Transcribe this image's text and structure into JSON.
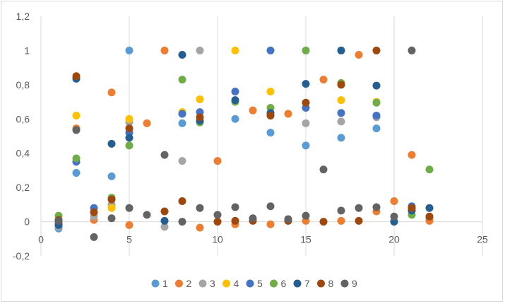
{
  "chart_data": {
    "type": "scatter",
    "title": "",
    "xlabel": "",
    "ylabel": "",
    "xlim": [
      0,
      25
    ],
    "ylim": [
      -0.2,
      1.2
    ],
    "x_ticks": [
      0,
      5,
      10,
      15,
      20,
      25
    ],
    "x_tick_labels": [
      "0",
      "5",
      "10",
      "15",
      "20",
      "25"
    ],
    "y_ticks": [
      -0.2,
      0,
      0.2,
      0.4,
      0.6,
      0.8,
      1,
      1.2
    ],
    "y_tick_labels": [
      "-0,2",
      "0",
      "0,2",
      "0,4",
      "0,6",
      "0,8",
      "1",
      "1,2"
    ],
    "grid": "vertical",
    "legend": "bottom",
    "series": [
      {
        "name": "1",
        "color": "#5b9bd5",
        "points": [
          [
            1,
            -0.04
          ],
          [
            2,
            0.285
          ],
          [
            4,
            0.265
          ],
          [
            5,
            1.0
          ],
          [
            8,
            0.575
          ],
          [
            11,
            0.6
          ],
          [
            13,
            0.52
          ],
          [
            15,
            0.445
          ],
          [
            17,
            0.49
          ],
          [
            19,
            0.545
          ],
          [
            21,
            0.065
          ],
          [
            22,
            0.02
          ]
        ]
      },
      {
        "name": "2",
        "color": "#ed7d31",
        "points": [
          [
            1,
            0.0
          ],
          [
            2,
            0.545
          ],
          [
            3,
            0.01
          ],
          [
            4,
            0.755
          ],
          [
            5,
            -0.02
          ],
          [
            6,
            0.575
          ],
          [
            7,
            1.0
          ],
          [
            9,
            -0.035
          ],
          [
            10,
            0.355
          ],
          [
            11,
            -0.015
          ],
          [
            12,
            0.65
          ],
          [
            13,
            -0.015
          ],
          [
            14,
            0.63
          ],
          [
            15,
            0.005
          ],
          [
            16,
            0.83
          ],
          [
            17,
            0.005
          ],
          [
            18,
            0.975
          ],
          [
            19,
            0.06
          ],
          [
            20,
            0.12
          ],
          [
            21,
            0.39
          ],
          [
            22,
            0.005
          ]
        ]
      },
      {
        "name": "3",
        "color": "#a5a5a5",
        "points": [
          [
            1,
            -0.03
          ],
          [
            3,
            0.03
          ],
          [
            4,
            0.1
          ],
          [
            5,
            0.58
          ],
          [
            7,
            -0.03
          ],
          [
            8,
            0.355
          ],
          [
            9,
            1.0
          ],
          [
            13,
            0.62
          ],
          [
            15,
            0.575
          ],
          [
            17,
            0.585
          ],
          [
            19,
            0.61
          ]
        ]
      },
      {
        "name": "4",
        "color": "#ffc000",
        "points": [
          [
            1,
            0.01
          ],
          [
            2,
            0.62
          ],
          [
            4,
            0.08
          ],
          [
            5,
            0.6
          ],
          [
            8,
            0.64
          ],
          [
            9,
            0.715
          ],
          [
            11,
            1.0
          ],
          [
            13,
            0.76
          ],
          [
            17,
            0.71
          ],
          [
            19,
            0.7
          ],
          [
            21,
            0.08
          ]
        ]
      },
      {
        "name": "5",
        "color": "#4472c4",
        "points": [
          [
            1,
            -0.01
          ],
          [
            2,
            0.35
          ],
          [
            3,
            0.08
          ],
          [
            5,
            0.52
          ],
          [
            8,
            0.63
          ],
          [
            9,
            0.64
          ],
          [
            11,
            0.76
          ],
          [
            13,
            1.0
          ],
          [
            15,
            0.665
          ],
          [
            17,
            0.635
          ],
          [
            19,
            0.62
          ],
          [
            21,
            0.09
          ]
        ]
      },
      {
        "name": "6",
        "color": "#70ad47",
        "points": [
          [
            1,
            0.035
          ],
          [
            2,
            0.37
          ],
          [
            4,
            0.14
          ],
          [
            5,
            0.445
          ],
          [
            8,
            0.83
          ],
          [
            9,
            0.58
          ],
          [
            11,
            0.7
          ],
          [
            13,
            0.665
          ],
          [
            15,
            1.0
          ],
          [
            17,
            0.81
          ],
          [
            19,
            0.695
          ],
          [
            21,
            0.04
          ],
          [
            22,
            0.305
          ]
        ]
      },
      {
        "name": "7",
        "color": "#255e91",
        "points": [
          [
            1,
            -0.02
          ],
          [
            2,
            0.835
          ],
          [
            4,
            0.455
          ],
          [
            5,
            0.49
          ],
          [
            7,
            0.005
          ],
          [
            8,
            0.975
          ],
          [
            9,
            0.59
          ],
          [
            11,
            0.71
          ],
          [
            13,
            0.635
          ],
          [
            15,
            0.805
          ],
          [
            17,
            1.0
          ],
          [
            19,
            0.795
          ],
          [
            20,
            0.0
          ],
          [
            21,
            0.065
          ],
          [
            22,
            0.08
          ]
        ]
      },
      {
        "name": "8",
        "color": "#9e480e",
        "points": [
          [
            1,
            0.01
          ],
          [
            2,
            0.85
          ],
          [
            3,
            0.055
          ],
          [
            4,
            0.13
          ],
          [
            5,
            0.545
          ],
          [
            7,
            0.06
          ],
          [
            8,
            0.12
          ],
          [
            9,
            0.61
          ],
          [
            10,
            0.0
          ],
          [
            11,
            0.005
          ],
          [
            12,
            0.005
          ],
          [
            13,
            0.62
          ],
          [
            14,
            0.005
          ],
          [
            15,
            0.695
          ],
          [
            16,
            0.0
          ],
          [
            17,
            0.8
          ],
          [
            18,
            0.005
          ],
          [
            19,
            1.0
          ],
          [
            21,
            0.08
          ],
          [
            22,
            0.03
          ]
        ]
      },
      {
        "name": "9",
        "color": "#636363",
        "points": [
          [
            1,
            0.005
          ],
          [
            2,
            0.535
          ],
          [
            3,
            -0.09
          ],
          [
            4,
            0.02
          ],
          [
            5,
            0.08
          ],
          [
            6,
            0.04
          ],
          [
            7,
            0.39
          ],
          [
            8,
            0.0
          ],
          [
            9,
            0.08
          ],
          [
            10,
            0.04
          ],
          [
            11,
            0.085
          ],
          [
            12,
            0.02
          ],
          [
            13,
            0.09
          ],
          [
            14,
            0.015
          ],
          [
            15,
            0.035
          ],
          [
            16,
            0.305
          ],
          [
            17,
            0.065
          ],
          [
            18,
            0.08
          ],
          [
            19,
            0.085
          ],
          [
            20,
            0.03
          ],
          [
            21,
            1.0
          ]
        ]
      }
    ]
  }
}
